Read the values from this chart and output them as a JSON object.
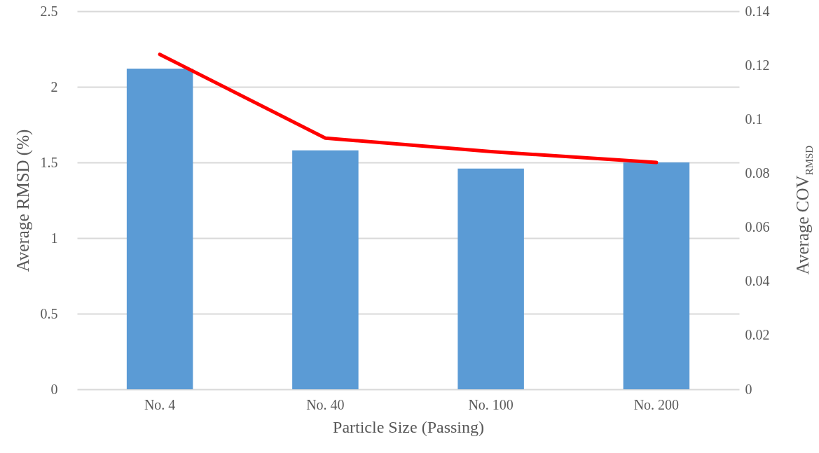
{
  "chart_data": {
    "type": "bar",
    "xlabel": "Particle Size (Passing)",
    "ylabel": "Average RMSD (%)",
    "y2label": "Average COV$_{RMSD}$",
    "categories": [
      "No. 4",
      "No. 40",
      "No. 100",
      "No. 200"
    ],
    "series": [
      {
        "color": "#5b9bd5",
        "values": [
          2.12,
          1.58,
          1.46,
          1.5
        ]
      },
      {
        "type": "line",
        "axis": "y2",
        "color": "#ff0000",
        "values": [
          0.124,
          0.093,
          0.088,
          0.084
        ]
      }
    ],
    "ylim": [
      0,
      2.5
    ],
    "yticks": [
      0,
      0.5,
      1,
      1.5,
      2,
      2.5
    ],
    "y2lim": [
      0,
      0.14
    ],
    "y2ticks": [
      0,
      0.02,
      0.04,
      0.06,
      0.08,
      0.1,
      0.12,
      0.14
    ],
    "grid": "y"
  }
}
